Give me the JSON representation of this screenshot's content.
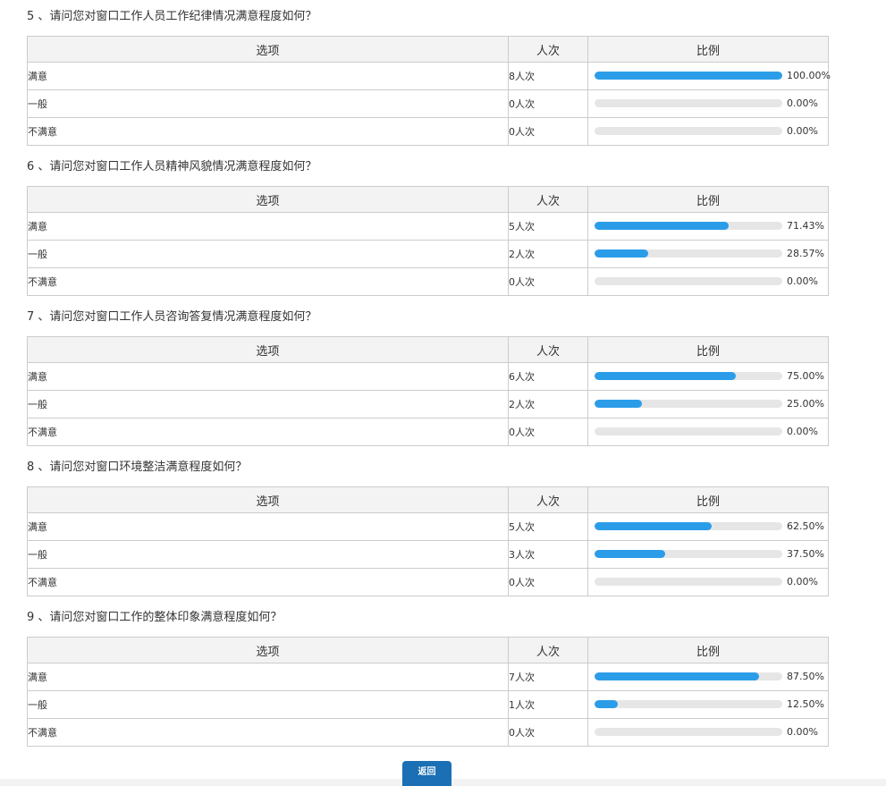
{
  "headers": {
    "option": "选项",
    "count": "人次",
    "ratio": "比例"
  },
  "questions": [
    {
      "title": "5 、请问您对窗口工作人员工作纪律情况满意程度如何？",
      "rows": [
        {
          "option": "满意",
          "count": "8人次",
          "ratio": 1.0,
          "ratio_text": "100.00%"
        },
        {
          "option": "一般",
          "count": "0人次",
          "ratio": 0.0,
          "ratio_text": "0.00%"
        },
        {
          "option": "不满意",
          "count": "0人次",
          "ratio": 0.0,
          "ratio_text": "0.00%"
        }
      ]
    },
    {
      "title": "6 、请问您对窗口工作人员精神风貌情况满意程度如何？",
      "rows": [
        {
          "option": "满意",
          "count": "5人次",
          "ratio": 0.7143,
          "ratio_text": "71.43%"
        },
        {
          "option": "一般",
          "count": "2人次",
          "ratio": 0.2857,
          "ratio_text": "28.57%"
        },
        {
          "option": "不满意",
          "count": "0人次",
          "ratio": 0.0,
          "ratio_text": "0.00%"
        }
      ]
    },
    {
      "title": "7 、请问您对窗口工作人员咨询答复情况满意程度如何？",
      "rows": [
        {
          "option": "满意",
          "count": "6人次",
          "ratio": 0.75,
          "ratio_text": "75.00%"
        },
        {
          "option": "一般",
          "count": "2人次",
          "ratio": 0.25,
          "ratio_text": "25.00%"
        },
        {
          "option": "不满意",
          "count": "0人次",
          "ratio": 0.0,
          "ratio_text": "0.00%"
        }
      ]
    },
    {
      "title": "8 、请问您对窗口环境整洁满意程度如何？",
      "rows": [
        {
          "option": "满意",
          "count": "5人次",
          "ratio": 0.625,
          "ratio_text": "62.50%"
        },
        {
          "option": "一般",
          "count": "3人次",
          "ratio": 0.375,
          "ratio_text": "37.50%"
        },
        {
          "option": "不满意",
          "count": "0人次",
          "ratio": 0.0,
          "ratio_text": "0.00%"
        }
      ]
    },
    {
      "title": "9 、请问您对窗口工作的整体印象满意程度如何？",
      "rows": [
        {
          "option": "满意",
          "count": "7人次",
          "ratio": 0.875,
          "ratio_text": "87.50%"
        },
        {
          "option": "一般",
          "count": "1人次",
          "ratio": 0.125,
          "ratio_text": "12.50%"
        },
        {
          "option": "不满意",
          "count": "0人次",
          "ratio": 0.0,
          "ratio_text": "0.00%"
        }
      ]
    }
  ],
  "back_button": "返回",
  "colors": {
    "bar_fill": "#2b9de8",
    "bar_track": "#e6e6e6",
    "button": "#1a6fb5"
  }
}
